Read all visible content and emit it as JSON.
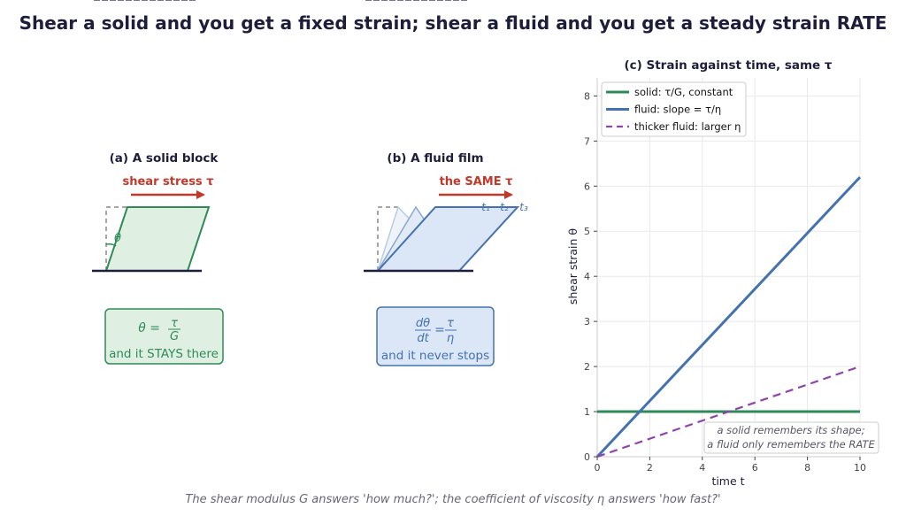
{
  "title": "Shear a solid and you get a fixed strain; shear a fluid and you get a steady strain RATE",
  "caption": "The shear modulus G answers 'how much?'; the coefficient of viscosity η answers 'how fast?'",
  "colors": {
    "solid": "#2e8b57",
    "fluid": "#4472b0",
    "thicker": "#8e44ad",
    "arrow": "#c0392b",
    "navy": "#1e1e3c"
  },
  "panel_a": {
    "title": "(a) A solid block",
    "arrow_label": "shear stress τ",
    "angle_label": "θ",
    "formula_lhs": "θ =",
    "formula_num": "τ",
    "formula_den": "G",
    "note": "and it STAYS there"
  },
  "panel_b": {
    "title": "(b) A fluid film",
    "arrow_label": "the SAME τ",
    "time_labels": [
      "t₁",
      "t₂",
      "t₃"
    ],
    "formula_lhs_num": "dθ",
    "formula_lhs_den": "dt",
    "formula_rhs_num": "τ",
    "formula_rhs_den": "η",
    "note": "and it never stops"
  },
  "panel_c": {
    "annotation_line1": "a solid remembers its shape;",
    "annotation_line2": "a fluid only remembers the RATE"
  },
  "chart_data": {
    "type": "line",
    "title": "(c) Strain against time, same τ",
    "xlabel": "time t",
    "ylabel": "shear strain θ",
    "xlim": [
      0,
      10
    ],
    "ylim": [
      0,
      8.4
    ],
    "xticks": [
      0,
      2,
      4,
      6,
      8,
      10
    ],
    "yticks": [
      0,
      1,
      2,
      3,
      4,
      5,
      6,
      7,
      8
    ],
    "grid": true,
    "legend_position": "top-left",
    "series": [
      {
        "name": "solid: τ/G, constant",
        "color": "#2e8b57",
        "style": "solid",
        "x": [
          0,
          10
        ],
        "y": [
          1,
          1
        ]
      },
      {
        "name": "fluid: slope = τ/η",
        "color": "#4472b0",
        "style": "solid",
        "x": [
          0,
          10
        ],
        "y": [
          0,
          6.2
        ]
      },
      {
        "name": "thicker fluid: larger η",
        "color": "#8e44ad",
        "style": "dashed",
        "x": [
          0,
          10
        ],
        "y": [
          0,
          2.0
        ]
      }
    ]
  }
}
